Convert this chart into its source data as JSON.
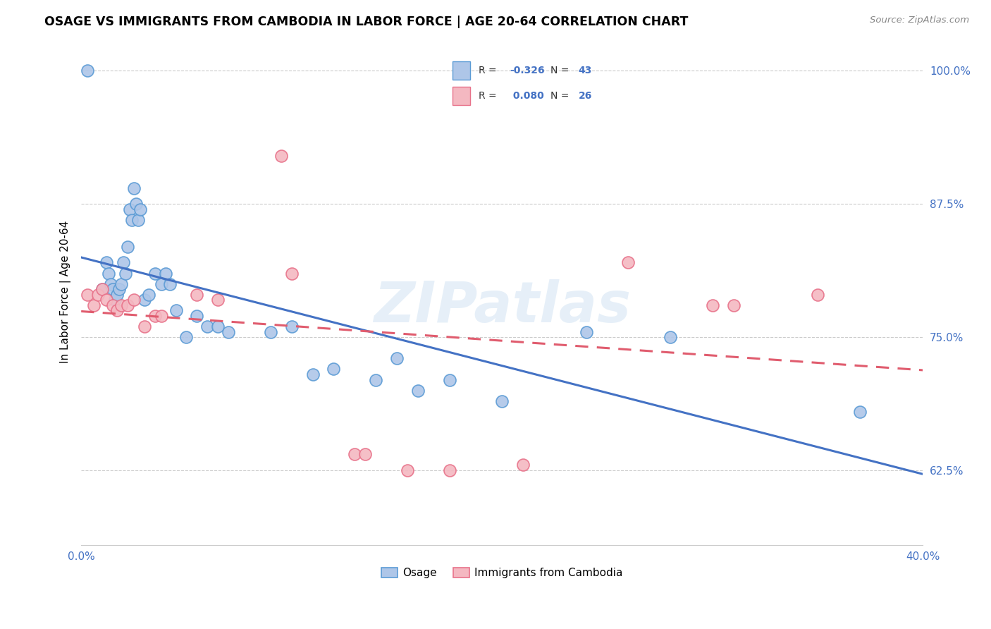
{
  "title": "OSAGE VS IMMIGRANTS FROM CAMBODIA IN LABOR FORCE | AGE 20-64 CORRELATION CHART",
  "source": "Source: ZipAtlas.com",
  "ylabel": "In Labor Force | Age 20-64",
  "xlim": [
    0.0,
    0.4
  ],
  "ylim": [
    0.555,
    1.03
  ],
  "yticks": [
    0.625,
    0.75,
    0.875,
    1.0
  ],
  "ytick_labels": [
    "62.5%",
    "75.0%",
    "87.5%",
    "100.0%"
  ],
  "xticks": [
    0.0,
    0.05,
    0.1,
    0.15,
    0.2,
    0.25,
    0.3,
    0.35,
    0.4
  ],
  "xtick_labels": [
    "0.0%",
    "",
    "",
    "",
    "",
    "",
    "",
    "",
    "40.0%"
  ],
  "osage_color": "#aec6e8",
  "osage_edge_color": "#5b9bd5",
  "cambodia_color": "#f4b8c1",
  "cambodia_edge_color": "#e8728a",
  "osage_R": -0.326,
  "osage_N": 43,
  "cambodia_R": 0.08,
  "cambodia_N": 26,
  "osage_line_color": "#4472c4",
  "cambodia_line_color": "#e05c6e",
  "legend_label_osage": "Osage",
  "legend_label_cambodia": "Immigrants from Cambodia",
  "watermark": "ZIPatlas",
  "osage_x": [
    0.003,
    0.01,
    0.012,
    0.013,
    0.014,
    0.015,
    0.016,
    0.017,
    0.018,
    0.019,
    0.02,
    0.021,
    0.022,
    0.023,
    0.024,
    0.025,
    0.026,
    0.027,
    0.028,
    0.03,
    0.032,
    0.035,
    0.038,
    0.04,
    0.042,
    0.045,
    0.05,
    0.055,
    0.06,
    0.065,
    0.07,
    0.09,
    0.1,
    0.11,
    0.12,
    0.14,
    0.15,
    0.16,
    0.175,
    0.2,
    0.24,
    0.28,
    0.37
  ],
  "osage_y": [
    1.0,
    0.795,
    0.82,
    0.81,
    0.8,
    0.795,
    0.785,
    0.79,
    0.795,
    0.8,
    0.82,
    0.81,
    0.835,
    0.87,
    0.86,
    0.89,
    0.875,
    0.86,
    0.87,
    0.785,
    0.79,
    0.81,
    0.8,
    0.81,
    0.8,
    0.775,
    0.75,
    0.77,
    0.76,
    0.76,
    0.755,
    0.755,
    0.76,
    0.715,
    0.72,
    0.71,
    0.73,
    0.7,
    0.71,
    0.69,
    0.755,
    0.75,
    0.68
  ],
  "cambodia_x": [
    0.003,
    0.006,
    0.008,
    0.01,
    0.012,
    0.015,
    0.017,
    0.019,
    0.022,
    0.025,
    0.03,
    0.035,
    0.038,
    0.055,
    0.065,
    0.095,
    0.1,
    0.13,
    0.135,
    0.155,
    0.175,
    0.21,
    0.26,
    0.3,
    0.31,
    0.35
  ],
  "cambodia_y": [
    0.79,
    0.78,
    0.79,
    0.795,
    0.785,
    0.78,
    0.775,
    0.78,
    0.78,
    0.785,
    0.76,
    0.77,
    0.77,
    0.79,
    0.785,
    0.92,
    0.81,
    0.64,
    0.64,
    0.625,
    0.625,
    0.63,
    0.82,
    0.78,
    0.78,
    0.79
  ]
}
